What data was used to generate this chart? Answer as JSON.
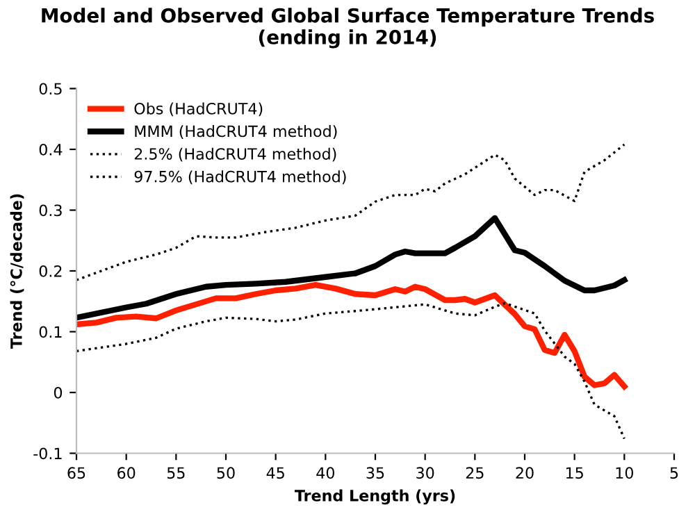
{
  "chart_data": {
    "type": "line",
    "title": "Model and Observed Global Surface Temperature Trends\n(ending in 2014)",
    "xlabel": "Trend Length (yrs)",
    "ylabel": "Trend (°C/decade)",
    "xlim": [
      65,
      5
    ],
    "xticks": [
      65,
      60,
      55,
      50,
      45,
      40,
      35,
      30,
      25,
      20,
      15,
      10,
      5
    ],
    "ylim": [
      -0.1,
      0.5
    ],
    "yticks": [
      -0.1,
      0,
      0.1,
      0.2,
      0.3,
      0.4,
      0.5
    ],
    "legend": "top left",
    "grid": false,
    "series": [
      {
        "name": "Obs (HadCRUT4)",
        "color": "#ff2000",
        "line_style": "solid",
        "x": [
          65,
          63,
          61,
          59,
          57,
          55,
          53,
          51,
          49,
          47,
          45,
          43,
          41,
          39,
          37,
          35,
          33,
          32,
          31,
          30,
          28,
          27,
          26,
          25,
          23,
          21,
          20,
          19,
          18,
          17,
          16,
          15,
          14,
          13,
          12,
          11,
          10
        ],
        "values": [
          0.112,
          0.115,
          0.123,
          0.125,
          0.122,
          0.135,
          0.145,
          0.155,
          0.155,
          0.162,
          0.168,
          0.171,
          0.177,
          0.171,
          0.162,
          0.16,
          0.17,
          0.166,
          0.174,
          0.17,
          0.152,
          0.152,
          0.154,
          0.148,
          0.16,
          0.129,
          0.109,
          0.104,
          0.07,
          0.065,
          0.095,
          0.068,
          0.026,
          0.012,
          0.015,
          0.029,
          0.01
        ]
      },
      {
        "name": "MMM (HadCRUT4 method)",
        "color": "#000000",
        "line_style": "solid",
        "x": [
          65,
          60,
          58,
          55,
          52,
          50,
          47,
          44,
          40,
          37,
          35,
          33,
          32,
          31,
          28,
          27,
          25,
          23,
          21,
          20,
          18,
          16,
          14,
          13,
          11,
          10
        ],
        "values": [
          0.123,
          0.14,
          0.146,
          0.162,
          0.174,
          0.177,
          0.179,
          0.182,
          0.19,
          0.196,
          0.208,
          0.227,
          0.232,
          0.229,
          0.229,
          0.238,
          0.257,
          0.287,
          0.234,
          0.23,
          0.208,
          0.184,
          0.168,
          0.168,
          0.176,
          0.185
        ]
      },
      {
        "name": "2.5% (HadCRUT4 method)",
        "color": "#000000",
        "line_style": "dotted",
        "x": [
          65,
          60,
          57,
          55,
          52,
          50,
          47,
          45,
          43,
          40,
          37,
          35,
          30,
          27,
          25,
          23,
          22,
          19,
          18,
          16,
          15,
          14,
          13,
          11,
          10
        ],
        "values": [
          0.068,
          0.08,
          0.09,
          0.105,
          0.117,
          0.123,
          0.121,
          0.117,
          0.12,
          0.13,
          0.134,
          0.137,
          0.145,
          0.13,
          0.127,
          0.141,
          0.147,
          0.13,
          0.102,
          0.059,
          0.047,
          0.018,
          -0.02,
          -0.039,
          -0.076
        ]
      },
      {
        "name": "97.5% (HadCRUT4 method)",
        "color": "#000000",
        "line_style": "dotted",
        "x": [
          65,
          60,
          57,
          55,
          53,
          51,
          49,
          46,
          43,
          40,
          37,
          35,
          33,
          31,
          30,
          29,
          28,
          26,
          23,
          22,
          21,
          19,
          18,
          17,
          15,
          14,
          12,
          10
        ],
        "values": [
          0.185,
          0.215,
          0.227,
          0.238,
          0.257,
          0.255,
          0.255,
          0.264,
          0.271,
          0.283,
          0.291,
          0.314,
          0.325,
          0.325,
          0.335,
          0.331,
          0.344,
          0.359,
          0.391,
          0.382,
          0.352,
          0.325,
          0.333,
          0.333,
          0.315,
          0.363,
          0.382,
          0.408
        ]
      }
    ]
  }
}
